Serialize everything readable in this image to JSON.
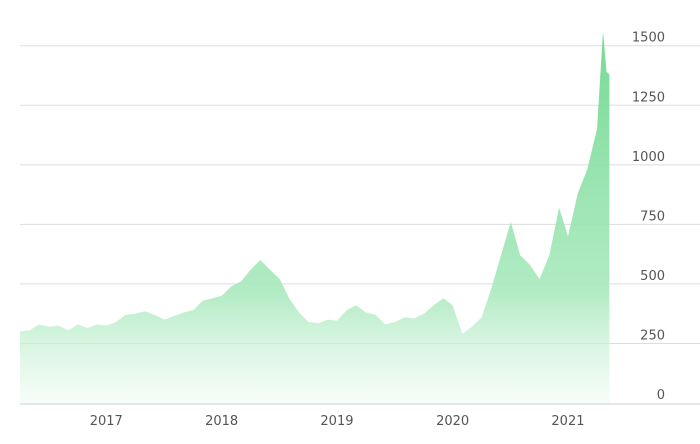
{
  "chart_data": {
    "type": "area",
    "title": "",
    "xlabel": "",
    "ylabel": "",
    "x_ticks": [
      "2017",
      "2018",
      "2019",
      "2020",
      "2021"
    ],
    "y_ticks": [
      0,
      250,
      500,
      750,
      1000,
      1250,
      1500
    ],
    "ylim": [
      0,
      1650
    ],
    "xlim": [
      "2016-06-01",
      "2021-07-31"
    ],
    "grid": true,
    "legend": "none",
    "fill_color": "#7fdc9a",
    "fill_color_light": "#e4f7ea",
    "points": [
      [
        "2016-06-01",
        300
      ],
      [
        "2016-07-01",
        305
      ],
      [
        "2016-08-01",
        330
      ],
      [
        "2016-09-01",
        320
      ],
      [
        "2016-10-01",
        325
      ],
      [
        "2016-11-01",
        305
      ],
      [
        "2016-12-01",
        330
      ],
      [
        "2017-01-01",
        315
      ],
      [
        "2017-02-01",
        330
      ],
      [
        "2017-03-01",
        325
      ],
      [
        "2017-04-01",
        340
      ],
      [
        "2017-05-01",
        370
      ],
      [
        "2017-06-01",
        375
      ],
      [
        "2017-07-01",
        385
      ],
      [
        "2017-08-01",
        370
      ],
      [
        "2017-09-01",
        350
      ],
      [
        "2017-10-01",
        365
      ],
      [
        "2017-11-01",
        380
      ],
      [
        "2017-12-01",
        390
      ],
      [
        "2018-01-01",
        430
      ],
      [
        "2018-02-01",
        440
      ],
      [
        "2018-03-01",
        450
      ],
      [
        "2018-04-01",
        490
      ],
      [
        "2018-05-01",
        510
      ],
      [
        "2018-06-01",
        560
      ],
      [
        "2018-07-01",
        600
      ],
      [
        "2018-08-01",
        560
      ],
      [
        "2018-09-01",
        520
      ],
      [
        "2018-10-01",
        440
      ],
      [
        "2018-11-01",
        380
      ],
      [
        "2018-12-01",
        340
      ],
      [
        "2019-01-01",
        335
      ],
      [
        "2019-02-01",
        350
      ],
      [
        "2019-03-01",
        345
      ],
      [
        "2019-04-01",
        390
      ],
      [
        "2019-05-01",
        410
      ],
      [
        "2019-06-01",
        380
      ],
      [
        "2019-07-01",
        370
      ],
      [
        "2019-08-01",
        330
      ],
      [
        "2019-09-01",
        340
      ],
      [
        "2019-10-01",
        360
      ],
      [
        "2019-11-01",
        355
      ],
      [
        "2019-12-01",
        375
      ],
      [
        "2020-01-01",
        410
      ],
      [
        "2020-02-01",
        440
      ],
      [
        "2020-03-01",
        410
      ],
      [
        "2020-04-01",
        290
      ],
      [
        "2020-05-01",
        320
      ],
      [
        "2020-06-01",
        360
      ],
      [
        "2020-07-01",
        480
      ],
      [
        "2020-08-01",
        620
      ],
      [
        "2020-09-01",
        760
      ],
      [
        "2020-10-01",
        620
      ],
      [
        "2020-11-01",
        580
      ],
      [
        "2020-12-01",
        520
      ],
      [
        "2021-01-01",
        620
      ],
      [
        "2021-02-01",
        820
      ],
      [
        "2021-03-01",
        700
      ],
      [
        "2021-04-01",
        880
      ],
      [
        "2021-05-01",
        980
      ],
      [
        "2021-06-01",
        1150
      ],
      [
        "2021-06-20",
        1560
      ],
      [
        "2021-07-01",
        1390
      ],
      [
        "2021-07-10",
        1380
      ]
    ]
  }
}
